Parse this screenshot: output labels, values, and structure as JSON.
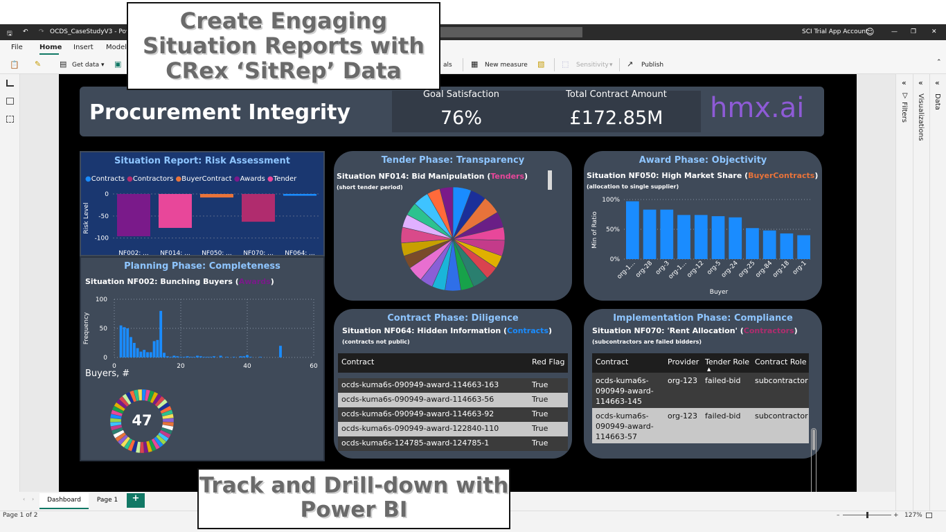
{
  "window": {
    "file_title": "OCDS_CaseStudyV3 - Power",
    "account": "SCI Trial App Account"
  },
  "ribbon": {
    "tabs": [
      "File",
      "Home",
      "Insert",
      "Model"
    ],
    "get_data": "Get data",
    "visuals_fragment": "als",
    "new_measure": "New measure",
    "sensitivity": "Sensitivity",
    "publish": "Publish"
  },
  "panes": {
    "filters": "Filters",
    "visualizations": "Visualizations",
    "data": "Data"
  },
  "callouts": {
    "top": [
      "Create Engaging",
      "Situation Reports with",
      "CRex ‘SitRep’ Data"
    ],
    "bottom": [
      "Track and Drill-down with",
      "Power BI"
    ]
  },
  "header": {
    "title": "Procurement Integrity",
    "goal_label": "Goal Satisfaction",
    "goal_value": "76%",
    "amount_label": "Total Contract Amount",
    "amount_value": "£172.85M",
    "logo": "hmx.ai"
  },
  "risk": {
    "title": "Situation Report: Risk Assessment",
    "legend": [
      {
        "label": "Contracts",
        "color": "#1a8cff"
      },
      {
        "label": "Contractors",
        "color": "#b02c6e"
      },
      {
        "label": "BuyerContract",
        "color": "#e8733a"
      },
      {
        "label": "Awards",
        "color": "#7a1a8a"
      },
      {
        "label": "Tender",
        "color": "#e8479a"
      }
    ],
    "ylabel": "Risk Level",
    "yticks": [
      "0",
      "-50",
      "-100"
    ]
  },
  "planning": {
    "title": "Planning Phase: Completeness",
    "situation": "Situation NF002: Bunching Buyers (",
    "tag": "Awards",
    "close": ")",
    "ylabel": "Frequency",
    "buyers_label": "Buyers, #",
    "buyers_value": "47"
  },
  "tender": {
    "title": "Tender Phase: Transparency",
    "situation": "Situation NF014: Bid Manipulation (",
    "tag": "Tenders",
    "close": ")",
    "note": "(short tender period)"
  },
  "award": {
    "title": "Award Phase: Objectivity",
    "situation": "Situation NF050: High Market Share (",
    "tag": "BuyerContracts",
    "close": ")",
    "note": "(allocation to single supplier)",
    "ylabel": "Min of Ratio",
    "xlabel": "Buyer"
  },
  "contract": {
    "title": "Contract Phase: Diligence",
    "situation": "Situation NF064: Hidden Information (",
    "tag": "Contracts",
    "close": ")",
    "note": "(contracts not public)",
    "headers": [
      "Contract",
      "Red Flag"
    ],
    "rows": [
      [
        "ocds-kuma6s-090949-award-114663-163",
        "True"
      ],
      [
        "ocds-kuma6s-090949-award-114663-56",
        "True"
      ],
      [
        "ocds-kuma6s-090949-award-114663-92",
        "True"
      ],
      [
        "ocds-kuma6s-090949-award-122840-110",
        "True"
      ],
      [
        "ocds-kuma6s-124785-award-124785-1",
        "True"
      ]
    ]
  },
  "implementation": {
    "title": "Implementation Phase: Compliance",
    "situation": "Situation NF070: 'Rent Allocation' (",
    "tag": "Contractors",
    "close": ")",
    "note": "(subcontractors are failed bidders)",
    "headers": [
      "Contract",
      "Provider",
      "Tender Role",
      "Contract Role"
    ],
    "rows": [
      {
        "contract": [
          "ocds-kuma6s-",
          "090949-award-",
          "114663-145"
        ],
        "provider": "org-123",
        "tender_role": "failed-bid",
        "contract_role": "subcontractor"
      },
      {
        "contract": [
          "ocds-kuma6s-",
          "090949-award-",
          "114663-57"
        ],
        "provider": "org-123",
        "tender_role": "failed-bid",
        "contract_role": "subcontractor"
      }
    ]
  },
  "status": {
    "page_info": "Page 1 of 2",
    "tabs": [
      "Dashboard",
      "Page 1"
    ],
    "zoom": "127%"
  },
  "chart_data": [
    {
      "type": "bar",
      "title": "Situation Report: Risk Assessment",
      "ylabel": "Risk Level",
      "categories": [
        "NF002: ...",
        "NF014: ...",
        "NF050: ...",
        "NF070: ...",
        "NF064: ..."
      ],
      "values": [
        -96,
        -77,
        -8,
        -63,
        -4
      ],
      "colors": [
        "#7a1a8a",
        "#e8479a",
        "#e8733a",
        "#b02c6e",
        "#1a8cff"
      ],
      "ylim": [
        -110,
        0
      ],
      "yticks": [
        0,
        -50,
        -100
      ]
    },
    {
      "type": "bar",
      "title": "Situation NF002: Bunching Buyers",
      "ylabel": "Frequency",
      "x": [
        2,
        3,
        4,
        5,
        6,
        7,
        8,
        9,
        10,
        11,
        12,
        13,
        14,
        15,
        16,
        17,
        18,
        19,
        20,
        21,
        22,
        23,
        24,
        25,
        26,
        27,
        28,
        29,
        30,
        32,
        34,
        36,
        38,
        39,
        40,
        41,
        44,
        50
      ],
      "values": [
        55,
        52,
        50,
        35,
        25,
        16,
        10,
        13,
        9,
        9,
        28,
        30,
        80,
        8,
        2,
        1,
        3,
        2,
        1,
        1,
        2,
        1,
        1,
        3,
        2,
        1,
        1,
        1,
        2,
        3,
        1,
        1,
        2,
        2,
        4,
        1,
        1,
        20
      ],
      "xlim": [
        0,
        60
      ],
      "ylim": [
        0,
        100
      ],
      "xticks": [
        0,
        20,
        40,
        60
      ],
      "yticks": [
        0,
        50,
        100
      ]
    },
    {
      "type": "pie",
      "title": "Situation NF014: Bid Manipulation",
      "values": [
        7,
        6,
        7,
        6,
        5,
        6,
        5,
        5,
        6,
        5,
        6,
        5,
        5,
        6,
        5,
        5,
        6,
        5,
        5,
        6,
        5,
        5
      ],
      "colors": [
        "#1a8cff",
        "#1b2f99",
        "#e8733a",
        "#6a1f86",
        "#e8479a",
        "#c43b8a",
        "#e0b000",
        "#d9434f",
        "#2a7f6f",
        "#17a24a",
        "#2f6fe8",
        "#1ab5d9",
        "#8a5fd6",
        "#e86fd0",
        "#7a4b2a",
        "#c8a000",
        "#d94a8a",
        "#e0b0ff",
        "#2cc28f",
        "#3ec3ff",
        "#ff6a3a",
        "#7a1a8a"
      ]
    },
    {
      "type": "bar",
      "title": "Situation NF050: High Market Share",
      "xlabel": "Buyer",
      "ylabel": "Min of Ratio",
      "categories": [
        "org-1...",
        "org-28",
        "org-3",
        "org-1...",
        "org-12",
        "org-5",
        "org-24",
        "org-25",
        "org-84",
        "org-18",
        "org-1"
      ],
      "values": [
        0.97,
        0.83,
        0.83,
        0.74,
        0.74,
        0.72,
        0.7,
        0.52,
        0.48,
        0.43,
        0.4
      ],
      "ylim": [
        0,
        1
      ],
      "yticks": [
        "0%",
        "50%",
        "100%"
      ]
    },
    {
      "type": "pie",
      "title": "Buyers, #",
      "total": 47,
      "values": [
        1,
        1,
        1,
        1,
        1,
        1,
        1,
        1,
        1,
        1,
        1,
        1,
        1,
        1,
        1,
        1,
        1,
        1,
        1,
        1,
        1,
        1,
        1,
        1,
        1,
        1,
        1,
        1,
        1,
        1,
        1,
        1,
        1,
        1,
        1,
        1,
        1,
        1,
        1,
        1,
        1,
        1,
        1,
        1,
        1,
        1,
        1
      ]
    }
  ]
}
